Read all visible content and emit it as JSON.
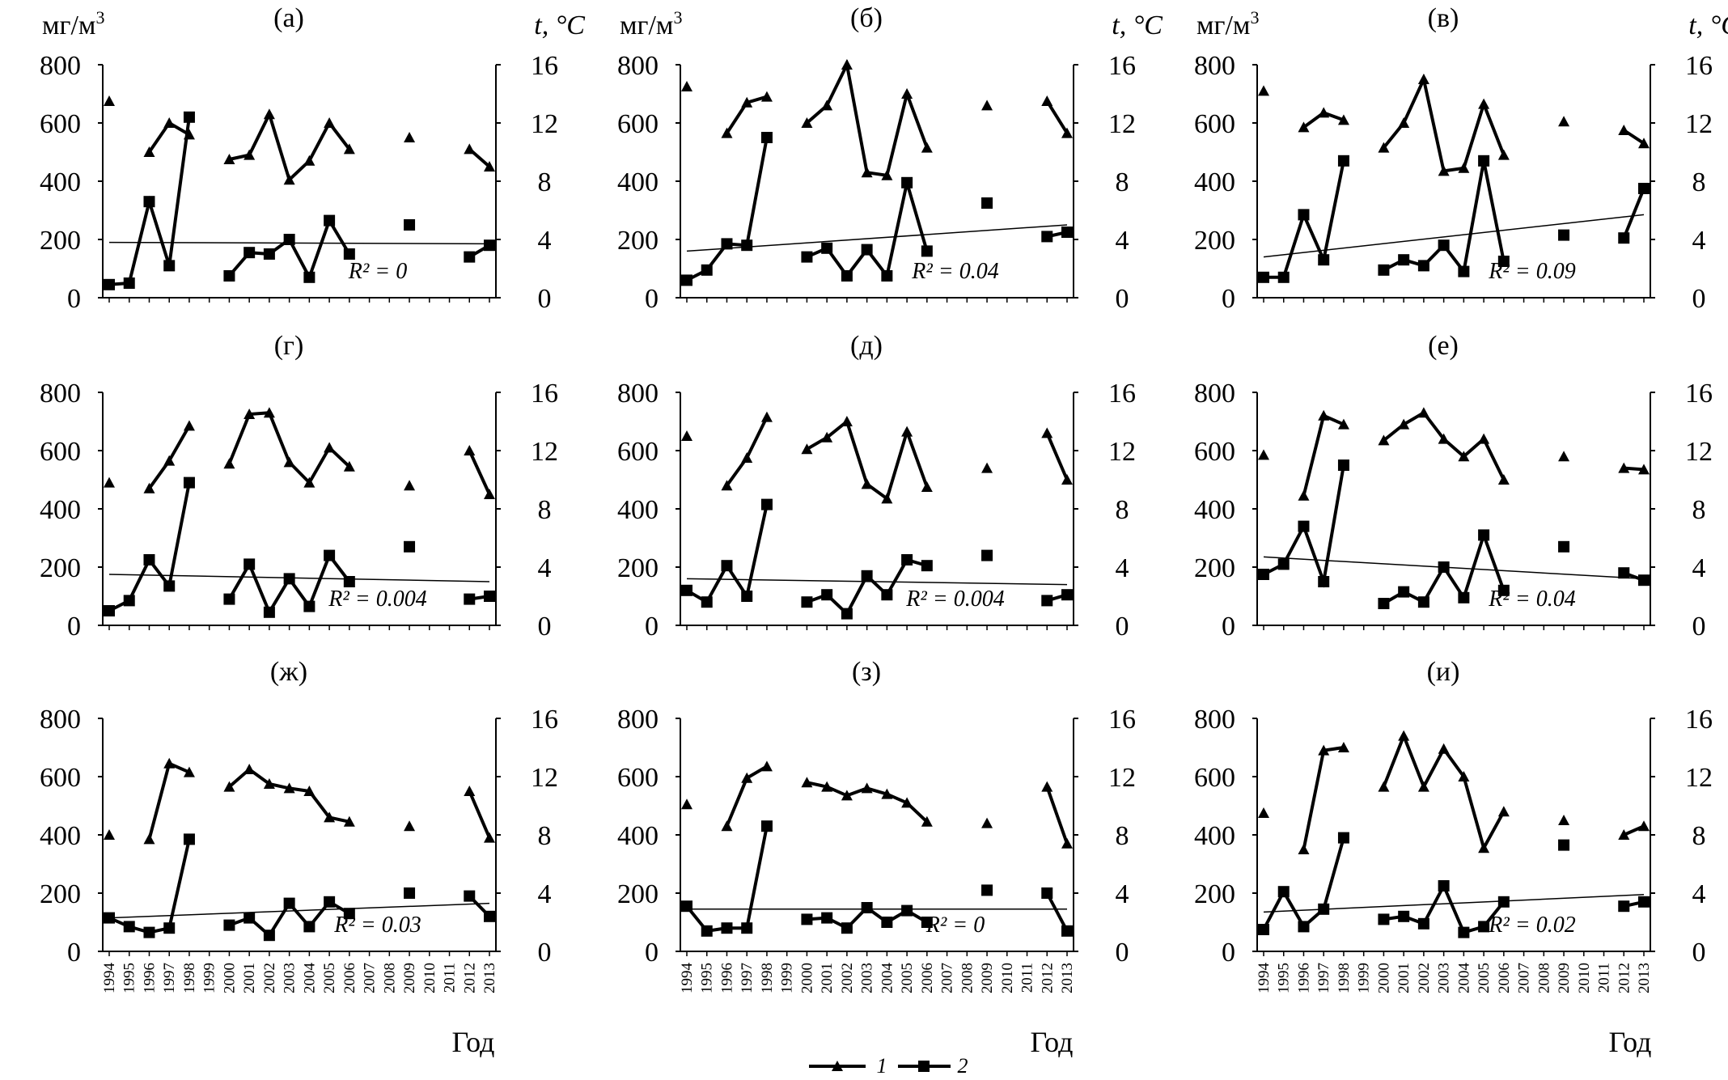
{
  "figure": {
    "left_axis_unit": "мг/м",
    "left_axis_unit_sup": "3",
    "right_axis_unit": "t, °C",
    "x_axis_label": "Год"
  },
  "legend": [
    {
      "marker": "triangle",
      "label": "1"
    },
    {
      "marker": "square",
      "label": "2"
    }
  ],
  "chart_data": {
    "type": "line",
    "x": [
      "1994",
      "1995",
      "1996",
      "1997",
      "1998",
      "1999",
      "2000",
      "2001",
      "2002",
      "2003",
      "2004",
      "2005",
      "2006",
      "2007",
      "2008",
      "2009",
      "2010",
      "2011",
      "2012",
      "2013"
    ],
    "left_ylim": [
      0,
      800
    ],
    "left_yticks": [
      0,
      200,
      400,
      600,
      800
    ],
    "right_ylim": [
      0,
      16
    ],
    "right_yticks": [
      0,
      4,
      8,
      12,
      16
    ],
    "series_names": {
      "temp": "1",
      "conc": "2"
    },
    "panels": [
      {
        "label": "(а)",
        "r2": "R² = 0",
        "temp": [
          13.5,
          null,
          10,
          12,
          11.2,
          null,
          9.5,
          9.8,
          12.6,
          8.1,
          9.4,
          12,
          10.2,
          null,
          null,
          11,
          null,
          null,
          10.2,
          9
        ],
        "conc": [
          45,
          50,
          330,
          110,
          620,
          null,
          75,
          155,
          150,
          200,
          70,
          265,
          150,
          null,
          null,
          250,
          null,
          null,
          140,
          180
        ],
        "trend": [
          190,
          185
        ]
      },
      {
        "label": "(б)",
        "r2": "R² = 0.04",
        "temp": [
          14.5,
          null,
          11.3,
          13.4,
          13.8,
          null,
          12,
          13.2,
          16,
          8.6,
          8.4,
          14,
          10.3,
          null,
          null,
          13.2,
          null,
          null,
          13.5,
          11.3
        ],
        "conc": [
          60,
          95,
          185,
          180,
          550,
          null,
          140,
          170,
          75,
          165,
          75,
          395,
          160,
          null,
          null,
          325,
          null,
          null,
          210,
          225
        ],
        "trend": [
          160,
          250
        ]
      },
      {
        "label": "(в)",
        "r2": "R² = 0.09",
        "temp": [
          14.2,
          null,
          11.7,
          12.7,
          12.2,
          null,
          10.3,
          12,
          15,
          8.7,
          8.9,
          13.3,
          9.8,
          null,
          null,
          12.1,
          null,
          null,
          11.5,
          10.6
        ],
        "conc": [
          70,
          70,
          285,
          130,
          470,
          null,
          95,
          130,
          110,
          180,
          90,
          470,
          125,
          null,
          null,
          215,
          null,
          null,
          205,
          375
        ],
        "trend": [
          140,
          285
        ]
      },
      {
        "label": "(г)",
        "r2": "R² = 0.004",
        "temp": [
          9.8,
          null,
          9.4,
          11.3,
          13.7,
          null,
          11.1,
          14.5,
          14.6,
          11.2,
          9.8,
          12.2,
          10.9,
          null,
          null,
          9.6,
          null,
          null,
          12,
          9
        ],
        "conc": [
          50,
          85,
          225,
          135,
          490,
          null,
          90,
          210,
          45,
          160,
          65,
          240,
          150,
          null,
          null,
          270,
          null,
          null,
          90,
          100
        ],
        "trend": [
          175,
          150
        ]
      },
      {
        "label": "(д)",
        "r2": "R² = 0.004",
        "temp": [
          13,
          null,
          9.6,
          11.5,
          14.3,
          null,
          12.1,
          12.9,
          14,
          9.7,
          8.7,
          13.3,
          9.5,
          null,
          null,
          10.8,
          null,
          null,
          13.2,
          10
        ],
        "conc": [
          120,
          80,
          205,
          100,
          415,
          null,
          80,
          105,
          40,
          170,
          105,
          225,
          205,
          null,
          null,
          240,
          null,
          null,
          85,
          105
        ],
        "trend": [
          160,
          140
        ]
      },
      {
        "label": "(е)",
        "r2": "R² = 0.04",
        "temp": [
          11.7,
          null,
          8.9,
          14.4,
          13.8,
          null,
          12.7,
          13.8,
          14.6,
          12.8,
          11.6,
          12.8,
          10,
          null,
          null,
          11.6,
          null,
          null,
          10.8,
          10.7
        ],
        "conc": [
          175,
          210,
          340,
          150,
          550,
          null,
          75,
          115,
          80,
          200,
          95,
          310,
          120,
          null,
          null,
          270,
          null,
          null,
          180,
          155
        ],
        "trend": [
          235,
          160
        ]
      },
      {
        "label": "(ж)",
        "r2": "R² = 0.03",
        "temp": [
          8,
          null,
          7.7,
          12.9,
          12.3,
          null,
          11.3,
          12.5,
          11.5,
          11.2,
          11,
          9.2,
          8.9,
          null,
          null,
          8.6,
          null,
          null,
          11,
          7.8
        ],
        "conc": [
          115,
          85,
          65,
          80,
          385,
          null,
          90,
          115,
          55,
          165,
          85,
          170,
          130,
          null,
          null,
          200,
          null,
          null,
          190,
          120
        ],
        "trend": [
          115,
          165
        ]
      },
      {
        "label": "(з)",
        "r2": "R² = 0",
        "temp": [
          10.1,
          null,
          8.6,
          11.9,
          12.7,
          null,
          11.6,
          11.3,
          10.7,
          11.2,
          10.8,
          10.2,
          8.9,
          null,
          null,
          8.8,
          null,
          null,
          11.3,
          7.4
        ],
        "conc": [
          155,
          70,
          80,
          80,
          430,
          null,
          110,
          115,
          80,
          150,
          100,
          140,
          100,
          null,
          null,
          210,
          null,
          null,
          200,
          70
        ],
        "trend": [
          145,
          145
        ]
      },
      {
        "label": "(и)",
        "r2": "R² = 0.02",
        "temp": [
          9.5,
          null,
          7,
          13.8,
          14,
          null,
          11.3,
          14.8,
          11.3,
          13.9,
          12,
          7.1,
          9.6,
          null,
          null,
          9,
          null,
          null,
          8,
          8.6
        ],
        "conc": [
          75,
          205,
          85,
          145,
          390,
          null,
          110,
          120,
          95,
          225,
          65,
          85,
          170,
          null,
          null,
          365,
          null,
          null,
          155,
          170
        ],
        "trend": [
          135,
          195
        ]
      }
    ]
  }
}
